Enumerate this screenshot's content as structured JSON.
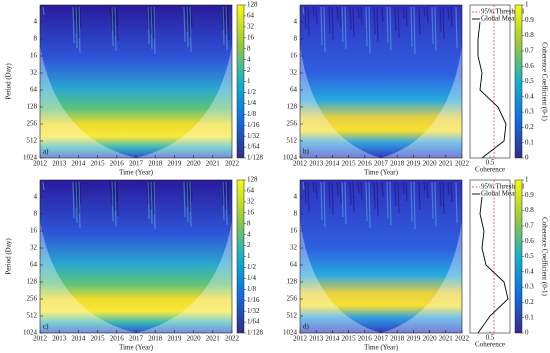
{
  "figure": {
    "xlabel": "Time (Year)",
    "ylabel": "Period (Day)",
    "xlim": [
      2012,
      2022
    ],
    "xticks": [
      2012,
      2013,
      2014,
      2015,
      2016,
      2017,
      2018,
      2019,
      2020,
      2021,
      2022
    ],
    "ylim": [
      2,
      1024
    ],
    "yticks": [
      4,
      8,
      16,
      32,
      64,
      128,
      256,
      512,
      1024
    ],
    "ylog": true,
    "power_colorbar": {
      "clim": [
        0.0078125,
        128
      ],
      "log": true,
      "ticks": [
        128,
        64,
        32,
        16,
        8,
        4,
        2,
        1,
        {
          "value": 0.5,
          "label": "1/2"
        },
        {
          "value": 0.25,
          "label": "1/4"
        },
        {
          "value": 0.125,
          "label": "1/8"
        },
        {
          "value": 0.0625,
          "label": "1/16"
        },
        {
          "value": 0.03125,
          "label": "1/32"
        },
        {
          "value": 0.015625,
          "label": "1/64"
        },
        {
          "value": 0.0078125,
          "label": "1/128"
        }
      ]
    },
    "coherence_colorbar": {
      "label": "Coherence Coefficient (0-1)",
      "clim": [
        0,
        1
      ],
      "ticks": [
        0,
        0.1,
        0.2,
        0.3,
        0.4,
        0.5,
        0.6,
        0.7,
        0.8,
        0.9,
        1
      ]
    },
    "side_panel": {
      "xlabel": "Coherence",
      "xlim": [
        0,
        1
      ],
      "xticks": [
        0.5
      ],
      "legend": [
        "95% Threshold",
        "Global Mean"
      ]
    },
    "rows": [
      {
        "power_label": "a)",
        "coherence_label": "b)",
        "threshold": 0.6,
        "global_mean": {
          "periods": [
            4,
            8,
            16,
            32,
            64,
            128,
            256,
            512,
            1024
          ],
          "values": [
            0.25,
            0.2,
            0.2,
            0.3,
            0.25,
            0.7,
            0.9,
            0.85,
            0.3
          ]
        }
      },
      {
        "power_label": "c)",
        "coherence_label": "d)",
        "threshold": 0.6,
        "global_mean": {
          "periods": [
            4,
            8,
            16,
            32,
            64,
            128,
            256,
            512,
            1024
          ],
          "values": [
            0.3,
            0.25,
            0.35,
            0.3,
            0.4,
            0.85,
            0.95,
            0.5,
            0.2
          ]
        }
      }
    ]
  }
}
